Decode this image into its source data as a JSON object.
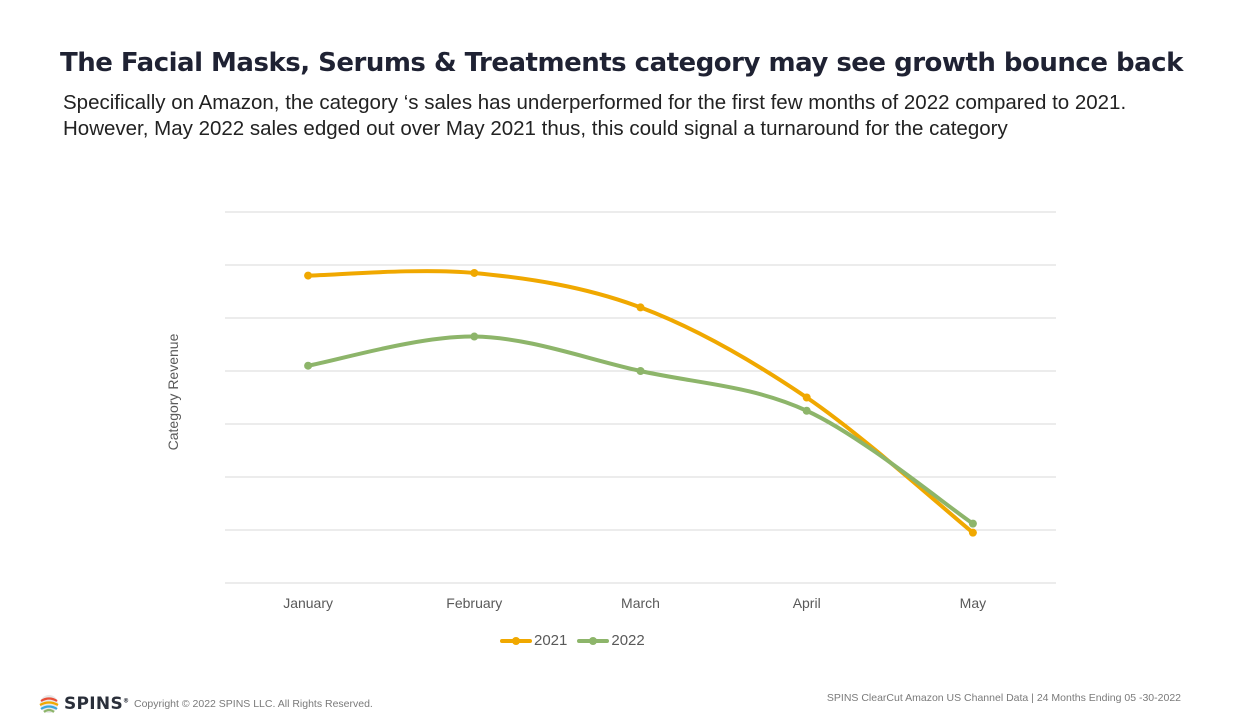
{
  "header": {
    "title": "The Facial Masks, Serums & Treatments category may see growth bounce back",
    "subtitle_line1": "Specifically on Amazon, the category ‘s sales has underperformed for the first few months of 2022 compared to 2021.",
    "subtitle_line2": "However, May 2022 sales edged out over May 2021 thus, this could signal a turnaround for the category"
  },
  "chart_data": {
    "type": "line",
    "title": "",
    "xlabel": "",
    "ylabel": "Category Revenue",
    "categories": [
      "January",
      "February",
      "March",
      "April",
      "May"
    ],
    "ylim": [
      0,
      7
    ],
    "grid": true,
    "y_tick_labels_shown": false,
    "smooth": true,
    "legend_position": "bottom",
    "series": [
      {
        "name": "2021",
        "color": "#f0a800",
        "values": [
          5.8,
          5.85,
          5.2,
          3.5,
          0.95
        ]
      },
      {
        "name": "2022",
        "color": "#8db56a",
        "values": [
          4.1,
          4.65,
          4.0,
          3.25,
          1.12
        ]
      }
    ]
  },
  "footer": {
    "logo_text": "SPINS",
    "logo_mark": "trademark",
    "copyright": "Copyright © 2022 SPINS LLC. All Rights Reserved.",
    "source": "SPINS ClearCut Amazon US Channel Data | 24 Months Ending 05 -30-2022"
  }
}
